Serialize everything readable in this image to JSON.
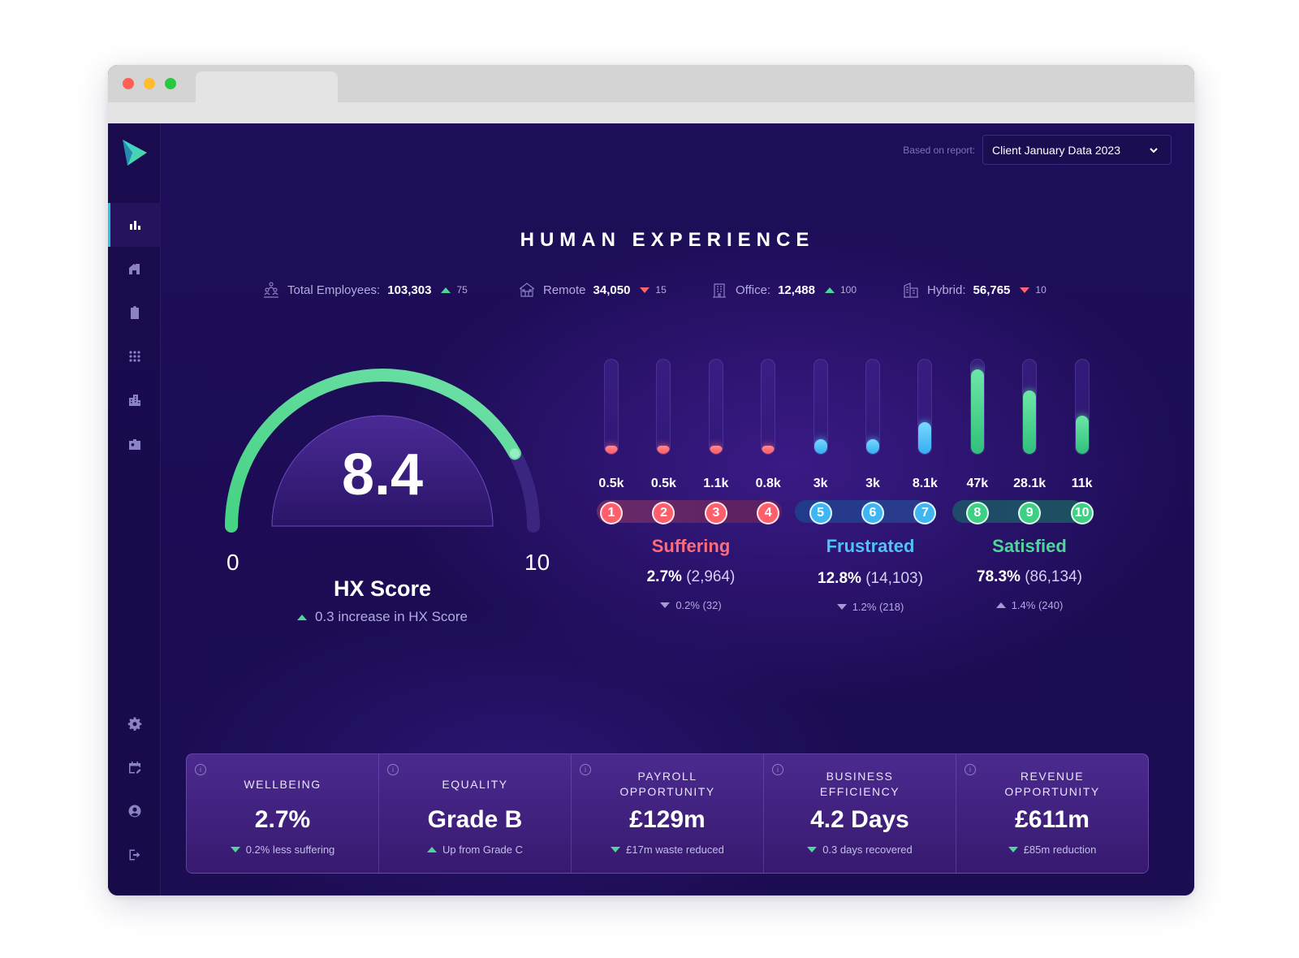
{
  "header": {
    "report_label": "Based on report:",
    "report_value": "Client January Data 2023"
  },
  "title": "HUMAN EXPERIENCE",
  "stats": [
    {
      "label": "Total Employees:",
      "value": "103,303",
      "delta": "75",
      "direction": "up"
    },
    {
      "label": "Remote",
      "value": "34,050",
      "delta": "15",
      "direction": "down"
    },
    {
      "label": "Office:",
      "value": "12,488",
      "delta": "100",
      "direction": "up"
    },
    {
      "label": "Hybrid:",
      "value": "56,765",
      "delta": "10",
      "direction": "down"
    }
  ],
  "gauge": {
    "score": "8.4",
    "score_value": 8.4,
    "min": "0",
    "max": "10",
    "label": "HX Score",
    "change": "0.3 increase in HX Score"
  },
  "distribution": [
    {
      "n": "1",
      "label": "0.5k",
      "level": 0.03,
      "group": "suffering"
    },
    {
      "n": "2",
      "label": "0.5k",
      "level": 0.03,
      "group": "suffering"
    },
    {
      "n": "3",
      "label": "1.1k",
      "level": 0.07,
      "group": "suffering"
    },
    {
      "n": "4",
      "label": "0.8k",
      "level": 0.05,
      "group": "suffering"
    },
    {
      "n": "5",
      "label": "3k",
      "level": 0.15,
      "group": "frustrated"
    },
    {
      "n": "6",
      "label": "3k",
      "level": 0.15,
      "group": "frustrated"
    },
    {
      "n": "7",
      "label": "8.1k",
      "level": 0.33,
      "group": "frustrated"
    },
    {
      "n": "8",
      "label": "47k",
      "level": 0.88,
      "group": "satisfied"
    },
    {
      "n": "9",
      "label": "28.1k",
      "level": 0.66,
      "group": "satisfied"
    },
    {
      "n": "10",
      "label": "11k",
      "level": 0.4,
      "group": "satisfied"
    }
  ],
  "groups": {
    "suffering": {
      "title": "Suffering",
      "pct": "2.7%",
      "count": "(2,964)",
      "delta": "0.2% (32)",
      "direction": "down",
      "color": "#ff6b78"
    },
    "frustrated": {
      "title": "Frustrated",
      "pct": "12.8%",
      "count": "(14,103)",
      "delta": "1.2% (218)",
      "direction": "down",
      "color": "#4fc3f7"
    },
    "satisfied": {
      "title": "Satisfied",
      "pct": "78.3%",
      "count": "(86,134)",
      "delta": "1.4% (240)",
      "direction": "up",
      "color": "#4ed59a"
    }
  },
  "cards": [
    {
      "title": "WELLBEING",
      "value": "2.7%",
      "sub": "0.2% less suffering",
      "direction": "down"
    },
    {
      "title": "EQUALITY",
      "value": "Grade B",
      "sub": "Up from Grade C",
      "direction": "up"
    },
    {
      "title": "PAYROLL OPPORTUNITY",
      "value": "£129m",
      "sub": "£17m waste reduced",
      "direction": "down"
    },
    {
      "title": "BUSINESS EFFICIENCY",
      "value": "4.2 Days",
      "sub": "0.3 days recovered",
      "direction": "down"
    },
    {
      "title": "REVENUE OPPORTUNITY",
      "value": "£611m",
      "sub": "£85m reduction",
      "direction": "down"
    }
  ],
  "colors": {
    "background": "#1d0e54",
    "accent_teal": "#24c8e0",
    "suffering": "#ff6b78",
    "frustrated": "#4fc3f7",
    "satisfied": "#4ed59a"
  },
  "icons": {
    "sidebar": [
      "bar-chart-icon",
      "building-icon",
      "clipboard-icon",
      "grid-icon",
      "city-icon",
      "id-badge-icon"
    ],
    "sidebar_bottom": [
      "gear-icon",
      "calendar-edit-icon",
      "user-circle-icon",
      "logout-icon"
    ]
  }
}
